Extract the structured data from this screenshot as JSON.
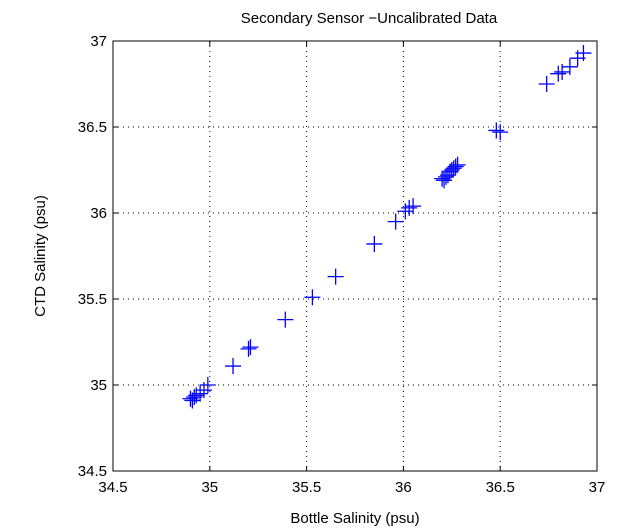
{
  "chart_data": {
    "type": "scatter",
    "title": "Secondary Sensor −Uncalibrated Data",
    "xlabel": "Bottle Salinity (psu)",
    "ylabel": "CTD Salinity (psu)",
    "xlim": [
      34.5,
      37
    ],
    "ylim": [
      34.5,
      37
    ],
    "xticks": [
      "34.5",
      "35",
      "35.5",
      "36",
      "36.5",
      "37"
    ],
    "yticks": [
      "34.5",
      "35",
      "35.5",
      "36",
      "36.5",
      "37"
    ],
    "grid": true,
    "marker": "plus",
    "marker_color": "#0000ff",
    "series": [
      {
        "x": [
          34.9,
          34.91,
          34.92,
          34.93,
          34.95,
          34.97,
          34.99,
          35.12,
          35.2,
          35.21,
          35.39,
          35.53,
          35.65,
          35.85,
          35.96,
          36.01,
          36.03,
          36.05,
          36.2,
          36.21,
          36.22,
          36.23,
          36.24,
          36.25,
          36.26,
          36.27,
          36.28,
          36.48,
          36.5,
          36.74,
          36.8,
          36.82,
          36.86,
          36.9,
          36.93
        ],
        "y": [
          34.92,
          34.91,
          34.93,
          34.94,
          34.95,
          34.97,
          35.0,
          35.11,
          35.21,
          35.22,
          35.38,
          35.51,
          35.63,
          35.82,
          35.95,
          36.01,
          36.03,
          36.04,
          36.2,
          36.19,
          36.21,
          36.22,
          36.24,
          36.25,
          36.26,
          36.27,
          36.28,
          36.48,
          36.47,
          36.75,
          36.81,
          36.82,
          36.85,
          36.9,
          36.93
        ]
      }
    ]
  }
}
